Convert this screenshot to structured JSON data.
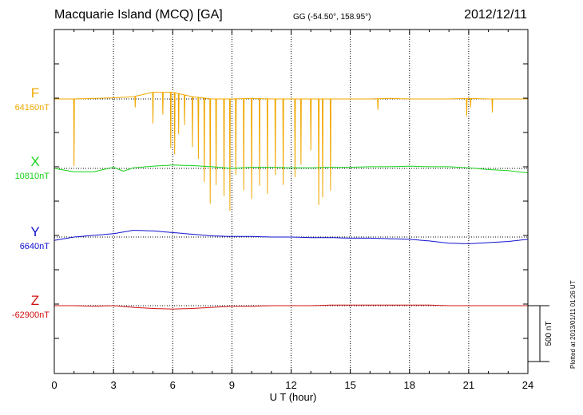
{
  "header": {
    "title": "Macquarie Island (MCQ)  [GA]",
    "coords": "GG (-54.50°, 158.95°)",
    "date": "2012/12/11",
    "plotted": "Plotted at 2013/01/11 01:26 UT"
  },
  "colors": {
    "F": "#f0a800",
    "X": "#16d11a",
    "Y": "#1010d0",
    "Z": "#d01010"
  },
  "chart_data": {
    "type": "line",
    "xlabel": "U T (hour)",
    "xlim": [
      0,
      24
    ],
    "xticks": [
      "0",
      "3",
      "6",
      "9",
      "12",
      "15",
      "18",
      "21",
      "24"
    ],
    "grid": true,
    "scale_bar": {
      "value_nT": 500,
      "label": "500 nT"
    },
    "channels": [
      {
        "name": "F",
        "baseline": "64160nT",
        "baseline_nT": 64160,
        "x": [
          0,
          1,
          2,
          3,
          4,
          5,
          6,
          7,
          8,
          9,
          10,
          11,
          12,
          13,
          14,
          15,
          16,
          17,
          18,
          19,
          20,
          21,
          22,
          23,
          24
        ],
        "values": [
          0,
          0,
          5,
          10,
          20,
          60,
          60,
          20,
          0,
          0,
          5,
          0,
          0,
          0,
          0,
          0,
          0,
          5,
          0,
          0,
          0,
          5,
          0,
          0,
          0
        ],
        "spikes": [
          {
            "x": 1.0,
            "depth": 600
          },
          {
            "x": 4.1,
            "depth": 100
          },
          {
            "x": 5.0,
            "depth": 280
          },
          {
            "x": 5.5,
            "depth": 200
          },
          {
            "x": 5.9,
            "depth": 500
          },
          {
            "x": 6.1,
            "depth": 550
          },
          {
            "x": 6.3,
            "depth": 360
          },
          {
            "x": 6.6,
            "depth": 270
          },
          {
            "x": 7.0,
            "depth": 450
          },
          {
            "x": 7.3,
            "depth": 550
          },
          {
            "x": 7.6,
            "depth": 750
          },
          {
            "x": 7.9,
            "depth": 940
          },
          {
            "x": 8.2,
            "depth": 770
          },
          {
            "x": 8.6,
            "depth": 870
          },
          {
            "x": 8.9,
            "depth": 1000
          },
          {
            "x": 9.2,
            "depth": 680
          },
          {
            "x": 9.6,
            "depth": 820
          },
          {
            "x": 10.0,
            "depth": 900
          },
          {
            "x": 10.4,
            "depth": 780
          },
          {
            "x": 10.8,
            "depth": 850
          },
          {
            "x": 11.2,
            "depth": 680
          },
          {
            "x": 11.6,
            "depth": 770
          },
          {
            "x": 12.2,
            "depth": 700
          },
          {
            "x": 12.5,
            "depth": 590
          },
          {
            "x": 13.0,
            "depth": 460
          },
          {
            "x": 13.4,
            "depth": 950
          },
          {
            "x": 13.6,
            "depth": 880
          },
          {
            "x": 14.0,
            "depth": 820
          },
          {
            "x": 16.4,
            "depth": 100
          },
          {
            "x": 20.9,
            "depth": 160
          },
          {
            "x": 21.1,
            "depth": 80
          },
          {
            "x": 22.2,
            "depth": 120
          }
        ]
      },
      {
        "name": "X",
        "baseline": "10810nT",
        "baseline_nT": 10810,
        "x": [
          0,
          1,
          2,
          3,
          3.5,
          4,
          5,
          6,
          7,
          8,
          9,
          10,
          11,
          12,
          13,
          14,
          15,
          16,
          17,
          18,
          19,
          20,
          21,
          22,
          23,
          24
        ],
        "values": [
          0,
          -30,
          -30,
          10,
          -25,
          5,
          20,
          30,
          25,
          15,
          0,
          10,
          10,
          5,
          5,
          10,
          10,
          15,
          15,
          20,
          15,
          15,
          5,
          -10,
          -20,
          -40
        ],
        "spikes": []
      },
      {
        "name": "Y",
        "baseline": "6640nT",
        "baseline_nT": 6640,
        "x": [
          0,
          1,
          2,
          3,
          4,
          5,
          6,
          7,
          8,
          9,
          10,
          11,
          12,
          13,
          14,
          15,
          16,
          17,
          18,
          19,
          20,
          21,
          22,
          23,
          24
        ],
        "values": [
          -30,
          0,
          15,
          30,
          60,
          55,
          40,
          25,
          10,
          5,
          5,
          0,
          0,
          -5,
          -5,
          -10,
          -10,
          -15,
          -20,
          -35,
          -55,
          -60,
          -50,
          -40,
          -20
        ],
        "spikes": []
      },
      {
        "name": "Z",
        "baseline": "-62900nT",
        "baseline_nT": -62900,
        "x": [
          0,
          1,
          2,
          3,
          4,
          5,
          6,
          7,
          8,
          9,
          10,
          11,
          12,
          13,
          14,
          15,
          16,
          17,
          18,
          19,
          20,
          21,
          22,
          23,
          24
        ],
        "values": [
          0,
          0,
          -5,
          0,
          -15,
          -25,
          -30,
          -25,
          -15,
          -5,
          -5,
          0,
          0,
          0,
          5,
          5,
          5,
          5,
          5,
          5,
          0,
          0,
          0,
          0,
          0
        ],
        "spikes": []
      }
    ]
  }
}
